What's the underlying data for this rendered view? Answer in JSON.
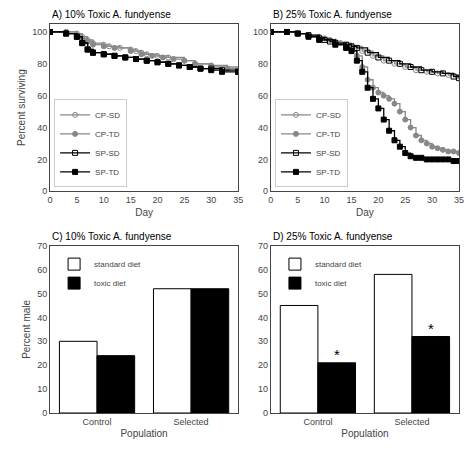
{
  "chart_data": [
    {
      "type": "line",
      "title": "A) 10% Toxic A. fundyense",
      "x_label": "Day",
      "y_label": "Percent surviving",
      "xlim": [
        0,
        35
      ],
      "ylim": [
        0,
        105
      ],
      "xticks": [
        0,
        5,
        10,
        15,
        20,
        25,
        30,
        35
      ],
      "yticks": [
        0,
        20,
        40,
        60,
        80,
        100
      ],
      "grid": false,
      "legend": "lower left",
      "series": [
        {
          "name": "CP-SD",
          "color": "#888888",
          "marker": "circle-open",
          "line_style": "step",
          "x": [
            0,
            3,
            5,
            6,
            7,
            8,
            10,
            11,
            13,
            15,
            16,
            17,
            18,
            20,
            22,
            25,
            27,
            30,
            35
          ],
          "values": [
            100,
            100,
            99,
            97,
            95,
            93,
            92,
            91,
            90,
            89,
            88,
            87,
            86,
            85,
            84,
            82,
            80,
            78,
            76
          ]
        },
        {
          "name": "CP-TD",
          "color": "#888888",
          "marker": "circle",
          "line_style": "step",
          "x": [
            0,
            3,
            5,
            6,
            7,
            8,
            10,
            12,
            15,
            17,
            19,
            21,
            23,
            25,
            27,
            30,
            33,
            35
          ],
          "values": [
            100,
            100,
            98,
            96,
            94,
            92,
            91,
            90,
            88,
            86,
            85,
            84,
            83,
            82,
            80,
            79,
            77,
            76
          ]
        },
        {
          "name": "SP-SD",
          "color": "#000000",
          "marker": "square-open",
          "line_style": "step",
          "x": [
            0,
            3,
            5,
            6,
            7,
            8,
            10,
            12,
            14,
            16,
            18,
            20,
            22,
            24,
            26,
            28,
            30,
            32,
            35
          ],
          "values": [
            100,
            99,
            97,
            93,
            89,
            87,
            86,
            85,
            84,
            83,
            82,
            81,
            80,
            79,
            78,
            77,
            77,
            76,
            75
          ]
        },
        {
          "name": "SP-TD",
          "color": "#000000",
          "marker": "square",
          "line_style": "step",
          "x": [
            0,
            3,
            5,
            6,
            7,
            8,
            10,
            12,
            14,
            16,
            18,
            20,
            22,
            24,
            26,
            28,
            30,
            32,
            35
          ],
          "values": [
            100,
            99,
            97,
            93,
            89,
            87,
            86,
            85,
            84,
            83,
            82,
            81,
            80,
            79,
            78,
            77,
            76,
            75,
            75
          ]
        }
      ]
    },
    {
      "type": "line",
      "title": "B) 25% Toxic A. fundyense",
      "x_label": "Day",
      "xlim": [
        0,
        35
      ],
      "ylim": [
        0,
        105
      ],
      "xticks": [
        0,
        5,
        10,
        15,
        20,
        25,
        30,
        35
      ],
      "yticks": [
        0,
        20,
        40,
        60,
        80,
        100
      ],
      "grid": false,
      "legend": "lower left",
      "series": [
        {
          "name": "CP-SD",
          "color": "#888888",
          "marker": "circle-open",
          "line_style": "step",
          "x": [
            0,
            3,
            5,
            7,
            9,
            10,
            11,
            12,
            13,
            14,
            15,
            17,
            19,
            21,
            23,
            25,
            27,
            29,
            31,
            33,
            35
          ],
          "values": [
            100,
            100,
            99,
            98,
            97,
            96,
            95,
            94,
            93,
            92,
            91,
            88,
            85,
            82,
            80,
            78,
            76,
            75,
            74,
            73,
            72
          ]
        },
        {
          "name": "CP-TD",
          "color": "#888888",
          "marker": "circle",
          "line_style": "step",
          "x": [
            0,
            3,
            5,
            7,
            9,
            12,
            15,
            16,
            17,
            18,
            19,
            20,
            21,
            22,
            23,
            24,
            25,
            26,
            27,
            28,
            29,
            30,
            31,
            32,
            33,
            34,
            35
          ],
          "values": [
            100,
            100,
            99,
            97,
            95,
            93,
            90,
            85,
            78,
            70,
            65,
            62,
            60,
            58,
            55,
            50,
            45,
            40,
            35,
            32,
            30,
            28,
            27,
            26,
            25,
            25,
            24
          ]
        },
        {
          "name": "SP-SD",
          "color": "#000000",
          "marker": "square-open",
          "line_style": "step",
          "x": [
            0,
            3,
            5,
            7,
            9,
            10,
            11,
            12,
            14,
            15,
            16,
            18,
            20,
            22,
            24,
            26,
            28,
            30,
            32,
            34,
            35
          ],
          "values": [
            100,
            100,
            99,
            98,
            96,
            95,
            94,
            93,
            92,
            91,
            90,
            87,
            84,
            82,
            80,
            78,
            76,
            75,
            74,
            72,
            71
          ]
        },
        {
          "name": "SP-TD",
          "color": "#000000",
          "marker": "square",
          "line_style": "step",
          "x": [
            0,
            3,
            5,
            7,
            9,
            12,
            14,
            15,
            16,
            17,
            18,
            19,
            20,
            21,
            22,
            23,
            24,
            25,
            26,
            27,
            28,
            29,
            30,
            31,
            32,
            33,
            34,
            35
          ],
          "values": [
            100,
            100,
            99,
            97,
            95,
            92,
            90,
            88,
            82,
            75,
            65,
            58,
            52,
            45,
            38,
            32,
            28,
            24,
            22,
            21,
            21,
            20,
            20,
            20,
            20,
            20,
            19,
            19
          ]
        }
      ]
    },
    {
      "type": "bar",
      "title": "C) 10% Toxic A. fundyense",
      "x_label": "Population",
      "y_label": "Percent male",
      "categories": [
        "Control",
        "Selected"
      ],
      "ylim": [
        0,
        70
      ],
      "yticks": [
        0,
        10,
        20,
        30,
        40,
        50,
        60,
        70
      ],
      "grid": false,
      "legend": "upper left",
      "series": [
        {
          "name": "standard diet",
          "color": "#ffffff",
          "values": [
            30,
            52
          ]
        },
        {
          "name": "toxic diet",
          "color": "#000000",
          "values": [
            24,
            52
          ]
        }
      ]
    },
    {
      "type": "bar",
      "title": "D) 25% Toxic A. fundyense",
      "x_label": "Population",
      "categories": [
        "Control",
        "Selected"
      ],
      "ylim": [
        0,
        70
      ],
      "yticks": [
        0,
        10,
        20,
        30,
        40,
        50,
        60,
        70
      ],
      "grid": false,
      "legend": "upper left",
      "series": [
        {
          "name": "standard diet",
          "color": "#ffffff",
          "values": [
            45,
            58
          ]
        },
        {
          "name": "toxic diet",
          "color": "#000000",
          "values": [
            21,
            32
          ]
        }
      ],
      "annotations": [
        {
          "text": "*",
          "category": "Control",
          "series": "toxic diet"
        },
        {
          "text": "*",
          "category": "Selected",
          "series": "toxic diet"
        }
      ]
    }
  ]
}
